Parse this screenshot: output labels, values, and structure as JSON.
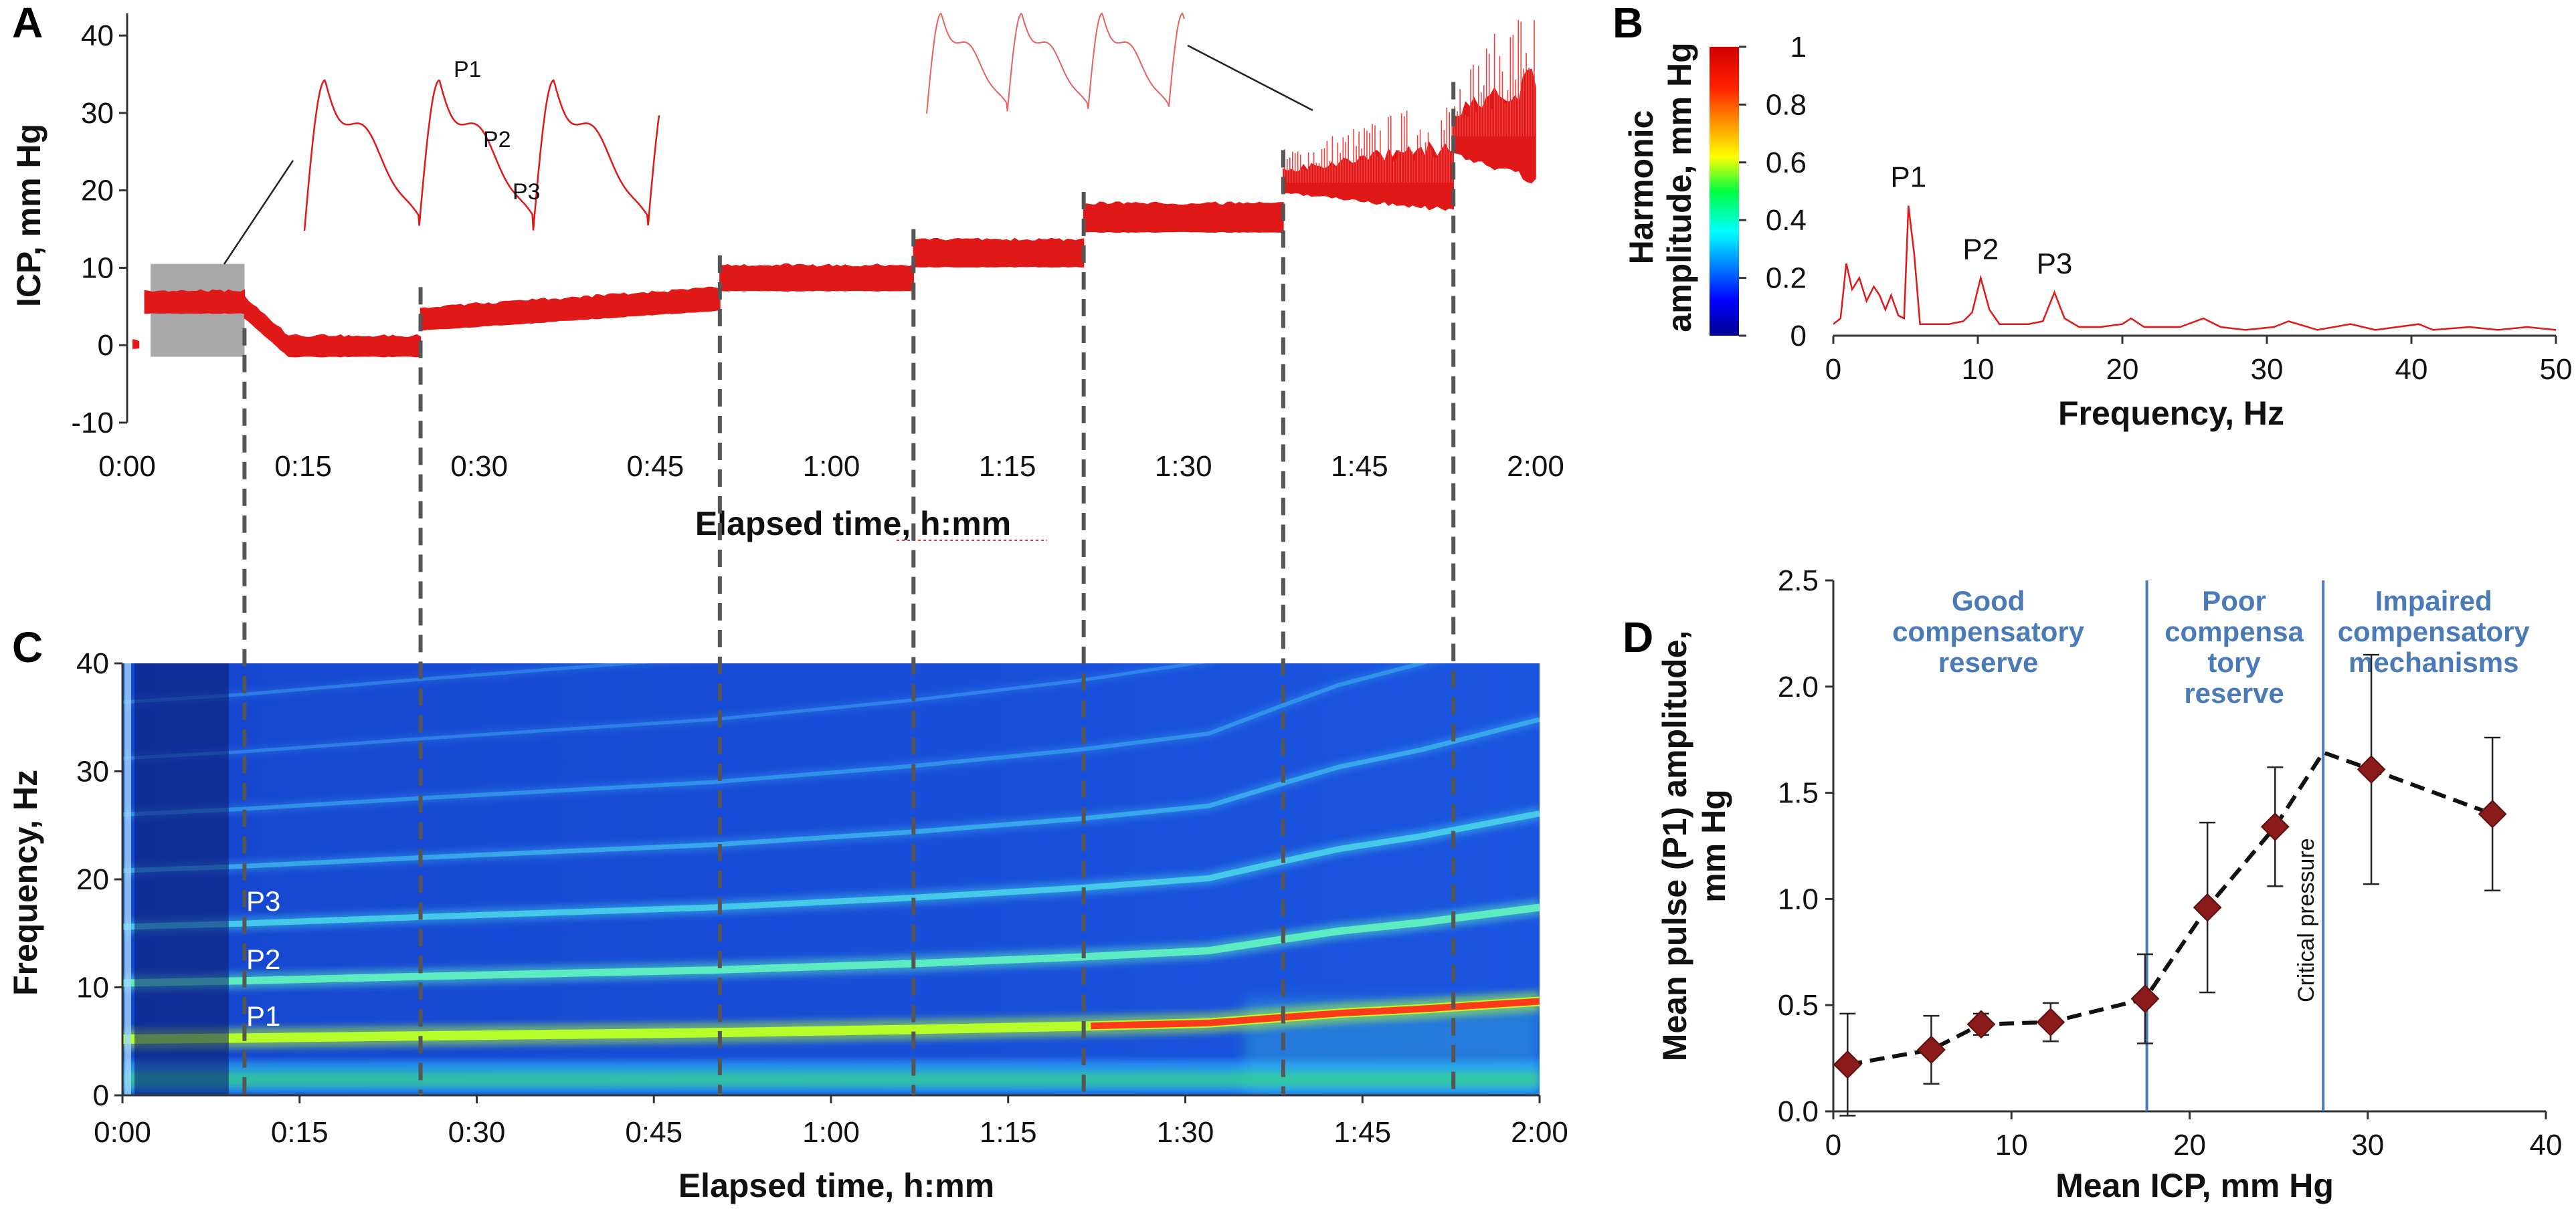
{
  "panels": {
    "a": "A",
    "b": "B",
    "c": "C",
    "d": "D"
  },
  "colors": {
    "signal": "#e01818",
    "zone": "#4a7ab8",
    "marker": "#8b1a1a",
    "divider": "#555555"
  },
  "chart_data": [
    {
      "id": "A",
      "type": "line",
      "xlabel": "Elapsed time, h:mm",
      "ylabel": "ICP, mm Hg",
      "xlim": [
        0,
        120
      ],
      "ylim": [
        -10,
        42
      ],
      "xticks": [
        0,
        15,
        30,
        45,
        60,
        75,
        90,
        105,
        120
      ],
      "xtick_labels": [
        "0:00",
        "0:15",
        "0:30",
        "0:45",
        "1:00",
        "1:15",
        "1:30",
        "1:45",
        "2:00"
      ],
      "yticks": [
        -10,
        0,
        10,
        20,
        30,
        40
      ],
      "ytick_labels": [
        "-10",
        "0",
        "10",
        "20",
        "30",
        "40"
      ],
      "stages": [
        {
          "start": 0.5,
          "end": 1.0,
          "mean": 0,
          "pulse": 0.6
        },
        {
          "start": 1.5,
          "end": 10.0,
          "mean": 5.5,
          "pulse": 2.6
        },
        {
          "start": 10.0,
          "end": 25.0,
          "mean": -0.2,
          "pulse": 2.4
        },
        {
          "start": 25.0,
          "end": 50.5,
          "mean": 4.9,
          "pulse": 2.6
        },
        {
          "start": 50.5,
          "end": 67.0,
          "mean": 8.6,
          "pulse": 3.0
        },
        {
          "start": 67.0,
          "end": 81.5,
          "mean": 11.8,
          "pulse": 3.2
        },
        {
          "start": 81.5,
          "end": 98.5,
          "mean": 16.4,
          "pulse": 3.4
        },
        {
          "start": 98.5,
          "end": 113.0,
          "mean": 21.0,
          "pulse": 4.2
        },
        {
          "start": 113.0,
          "end": 120.0,
          "mean": 27.0,
          "pulse": 7.0
        }
      ],
      "stage_boundaries": [
        10.0,
        25.0,
        50.5,
        67.0,
        81.5,
        98.5,
        113.0
      ],
      "highlight_window": [
        2,
        10
      ],
      "waveform_labels": [
        "P1",
        "P2",
        "P3"
      ]
    },
    {
      "id": "B",
      "type": "line",
      "xlabel": "Frequency, Hz",
      "ylabel_lines": [
        "Harmonic",
        "amplitude, mm Hg"
      ],
      "xlim": [
        0,
        50
      ],
      "ylim": [
        0,
        1
      ],
      "xticks": [
        0,
        10,
        20,
        30,
        40,
        50
      ],
      "xtick_labels": [
        "0",
        "10",
        "20",
        "30",
        "40",
        "50"
      ],
      "colorbar_ticks": [
        0,
        0.2,
        0.4,
        0.6,
        0.8,
        1
      ],
      "colorbar_tick_labels": [
        "0",
        "0.2",
        "0.4",
        "0.6",
        "0.8",
        "1"
      ],
      "peaks": [
        {
          "label": "P1",
          "freq": 5.2,
          "amp": 0.45
        },
        {
          "label": "P2",
          "freq": 10.2,
          "amp": 0.2
        },
        {
          "label": "P3",
          "freq": 15.3,
          "amp": 0.15
        }
      ],
      "series": {
        "freq": [
          0,
          0.5,
          0.9,
          1.3,
          1.8,
          2.3,
          2.8,
          3.2,
          3.6,
          4.0,
          4.5,
          4.9,
          5.2,
          5.6,
          6.0,
          7.0,
          8.0,
          9.0,
          9.6,
          10.2,
          10.8,
          11.5,
          12.5,
          13.5,
          14.5,
          15.3,
          16.0,
          17.0,
          18.5,
          20.0,
          20.6,
          21.5,
          22.5,
          24.0,
          25.6,
          26.8,
          28.5,
          30.5,
          31.5,
          33.5,
          35.8,
          37.5,
          40.5,
          41.5,
          44.0,
          46.0,
          48.0,
          50.0
        ],
        "amp": [
          0.04,
          0.06,
          0.25,
          0.16,
          0.2,
          0.12,
          0.17,
          0.14,
          0.09,
          0.14,
          0.07,
          0.06,
          0.45,
          0.28,
          0.04,
          0.04,
          0.04,
          0.05,
          0.08,
          0.2,
          0.09,
          0.04,
          0.04,
          0.04,
          0.05,
          0.15,
          0.06,
          0.03,
          0.03,
          0.04,
          0.06,
          0.03,
          0.03,
          0.03,
          0.06,
          0.03,
          0.02,
          0.03,
          0.05,
          0.02,
          0.04,
          0.02,
          0.04,
          0.02,
          0.03,
          0.02,
          0.03,
          0.02
        ]
      }
    },
    {
      "id": "C",
      "type": "heatmap",
      "xlabel": "Elapsed time, h:mm",
      "ylabel": "Frequency, Hz",
      "xlim": [
        0,
        120
      ],
      "ylim": [
        0,
        40
      ],
      "xticks": [
        0,
        15,
        30,
        45,
        60,
        75,
        90,
        105,
        120
      ],
      "xtick_labels": [
        "0:00",
        "0:15",
        "0:30",
        "0:45",
        "1:00",
        "1:15",
        "1:30",
        "1:45",
        "2:00"
      ],
      "yticks": [
        0,
        10,
        20,
        30,
        40
      ],
      "ytick_labels": [
        "0",
        "10",
        "20",
        "30",
        "40"
      ],
      "band_labels": [
        "P1",
        "P2",
        "P3"
      ],
      "fundamental_hz": {
        "time": [
          0,
          10,
          25,
          50,
          67,
          81,
          92,
          98,
          103,
          110,
          120
        ],
        "freq": [
          5.2,
          5.3,
          5.5,
          5.8,
          6.1,
          6.4,
          6.7,
          7.2,
          7.6,
          8.0,
          8.7
        ]
      },
      "shaded_window": [
        0,
        9
      ]
    },
    {
      "id": "D",
      "type": "scatter",
      "xlabel": "Mean ICP, mm Hg",
      "ylabel_lines": [
        "Mean pulse (P1) amplitude,",
        "mm Hg"
      ],
      "xlim": [
        0,
        40
      ],
      "ylim": [
        0,
        2.5
      ],
      "xticks": [
        0,
        10,
        20,
        30,
        40
      ],
      "xtick_labels": [
        "0",
        "10",
        "20",
        "30",
        "40"
      ],
      "yticks": [
        0,
        0.5,
        1.0,
        1.5,
        2.0,
        2.5
      ],
      "ytick_labels": [
        "0.0",
        "0.5",
        "1.0",
        "1.5",
        "2.0",
        "2.5"
      ],
      "points": [
        {
          "x": 0.8,
          "y": 0.22,
          "err": 0.24
        },
        {
          "x": 5.5,
          "y": 0.29,
          "err": 0.16
        },
        {
          "x": 8.3,
          "y": 0.41,
          "err": 0.05
        },
        {
          "x": 12.2,
          "y": 0.42,
          "err": 0.09
        },
        {
          "x": 17.5,
          "y": 0.53,
          "err": 0.21
        },
        {
          "x": 21.0,
          "y": 0.96,
          "err": 0.4
        },
        {
          "x": 24.8,
          "y": 1.34,
          "err": 0.28
        },
        {
          "x": 30.2,
          "y": 1.61,
          "err": 0.54
        },
        {
          "x": 37.0,
          "y": 1.4,
          "err": 0.36
        }
      ],
      "dashed_line": {
        "x": [
          0.8,
          5.5,
          8.3,
          12.2,
          17.5,
          21.0,
          24.8,
          27.5,
          30.2,
          37.0
        ],
        "y": [
          0.22,
          0.29,
          0.41,
          0.42,
          0.53,
          0.96,
          1.34,
          1.69,
          1.61,
          1.4
        ]
      },
      "dividers": [
        17.6,
        27.5
      ],
      "zones": [
        {
          "lines": [
            "Good",
            "compensatory",
            "reserve"
          ],
          "center_x": 8.7
        },
        {
          "lines": [
            "Poor",
            "compensa",
            "tory",
            "reserve"
          ],
          "center_x": 22.5
        },
        {
          "lines": [
            "Impaired",
            "compensatory",
            "mechanisms"
          ],
          "center_x": 33.7
        }
      ],
      "annotation": "Critical pressure"
    }
  ]
}
